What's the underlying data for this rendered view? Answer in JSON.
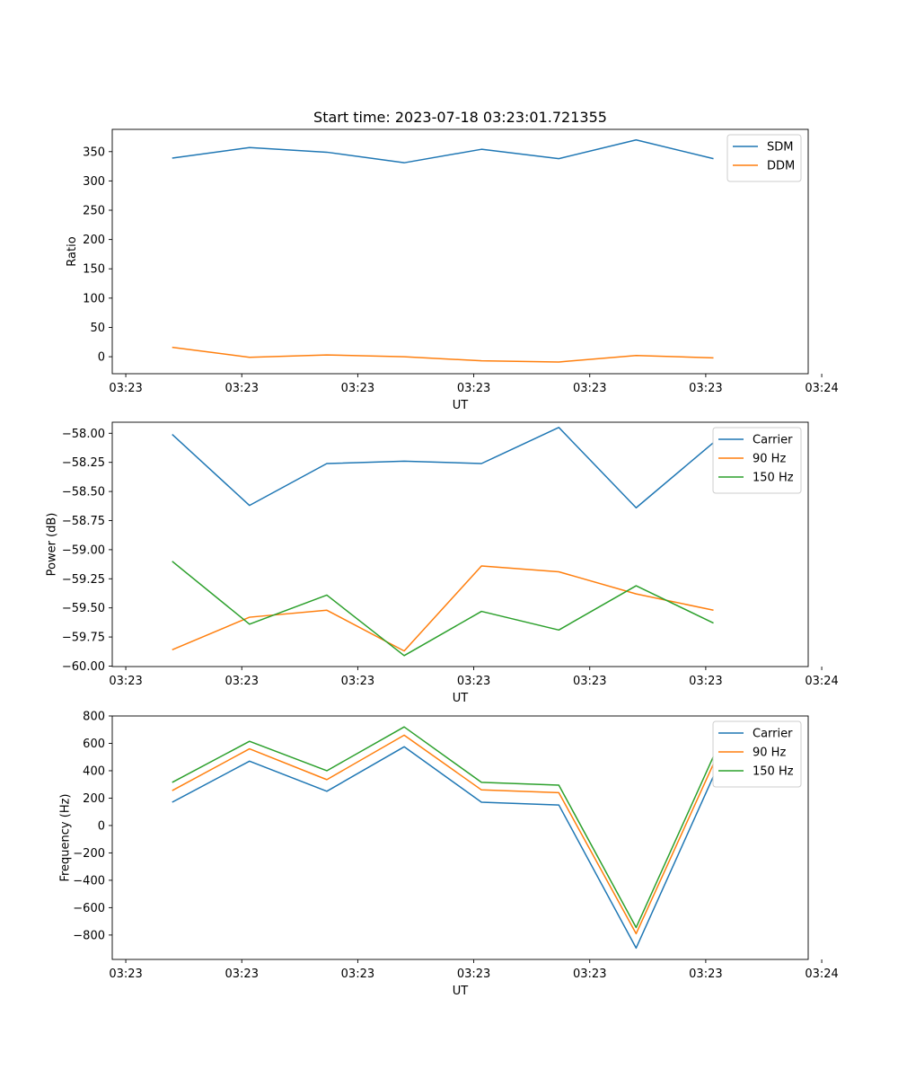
{
  "title": "Start time: 2023-07-18 03:23:01.721355",
  "colors": {
    "blue": "#1f77b4",
    "orange": "#ff7f0e",
    "green": "#2ca02c"
  },
  "chart_data": [
    {
      "type": "line",
      "xlabel": "UT",
      "ylabel": "Ratio",
      "x": [
        1,
        2,
        3,
        4,
        5,
        6,
        7,
        8
      ],
      "xlim": [
        0.225,
        9.225
      ],
      "xticks": [
        0.4,
        1.9,
        3.4,
        4.9,
        6.4,
        7.9,
        9.4
      ],
      "xtick_labels": [
        "03:23",
        "03:23",
        "03:23",
        "03:23",
        "03:23",
        "03:23",
        "03:24"
      ],
      "ylim": [
        -29,
        388
      ],
      "yticks": [
        0,
        50,
        100,
        150,
        200,
        250,
        300,
        350
      ],
      "ytick_labels": [
        "0",
        "50",
        "100",
        "150",
        "200",
        "250",
        "300",
        "350"
      ],
      "legend_position": "top-right",
      "series": [
        {
          "name": "SDM",
          "color": "#1f77b4",
          "values": [
            339,
            357,
            349,
            331,
            354,
            338,
            370,
            338
          ]
        },
        {
          "name": "DDM",
          "color": "#ff7f0e",
          "values": [
            16,
            -1,
            3,
            0,
            -7,
            -9,
            2,
            -2
          ]
        }
      ]
    },
    {
      "type": "line",
      "xlabel": "UT",
      "ylabel": "Power (dB)",
      "x": [
        1,
        2,
        3,
        4,
        5,
        6,
        7,
        8
      ],
      "xlim": [
        0.225,
        9.225
      ],
      "xticks": [
        0.4,
        1.9,
        3.4,
        4.9,
        6.4,
        7.9,
        9.4
      ],
      "xtick_labels": [
        "03:23",
        "03:23",
        "03:23",
        "03:23",
        "03:23",
        "03:23",
        "03:24"
      ],
      "ylim": [
        -60.004,
        -57.905
      ],
      "yticks": [
        -60.0,
        -59.75,
        -59.5,
        -59.25,
        -59.0,
        -58.75,
        -58.5,
        -58.25,
        -58.0
      ],
      "ytick_labels": [
        "−60.00",
        "−59.75",
        "−59.50",
        "−59.25",
        "−59.00",
        "−58.75",
        "−58.50",
        "−58.25",
        "−58.00"
      ],
      "legend_position": "top-right",
      "series": [
        {
          "name": "Carrier",
          "color": "#1f77b4",
          "values": [
            -58.01,
            -58.62,
            -58.26,
            -58.24,
            -58.26,
            -57.95,
            -58.64,
            -58.08
          ]
        },
        {
          "name": "90 Hz",
          "color": "#ff7f0e",
          "values": [
            -59.86,
            -59.58,
            -59.52,
            -59.87,
            -59.14,
            -59.19,
            -59.38,
            -59.52
          ]
        },
        {
          "name": "150 Hz",
          "color": "#2ca02c",
          "values": [
            -59.1,
            -59.64,
            -59.39,
            -59.91,
            -59.53,
            -59.69,
            -59.31,
            -59.63
          ]
        }
      ]
    },
    {
      "type": "line",
      "xlabel": "UT",
      "ylabel": "Frequency (Hz)",
      "x": [
        1,
        2,
        3,
        4,
        5,
        6,
        7,
        8
      ],
      "xlim": [
        0.225,
        9.225
      ],
      "xticks": [
        0.4,
        1.9,
        3.4,
        4.9,
        6.4,
        7.9,
        9.4
      ],
      "xtick_labels": [
        "03:23",
        "03:23",
        "03:23",
        "03:23",
        "03:23",
        "03:23",
        "03:24"
      ],
      "ylim": [
        -978,
        800
      ],
      "yticks": [
        -800,
        -600,
        -400,
        -200,
        0,
        200,
        400,
        600,
        800
      ],
      "ytick_labels": [
        "−800",
        "−600",
        "−400",
        "−200",
        "0",
        "200",
        "400",
        "600",
        "800"
      ],
      "legend_position": "top-right",
      "series": [
        {
          "name": "Carrier",
          "color": "#1f77b4",
          "values": [
            170,
            470,
            250,
            575,
            170,
            150,
            -895,
            360
          ]
        },
        {
          "name": "90 Hz",
          "color": "#ff7f0e",
          "values": [
            255,
            560,
            335,
            660,
            260,
            240,
            -790,
            450
          ]
        },
        {
          "name": "150 Hz",
          "color": "#2ca02c",
          "values": [
            315,
            615,
            400,
            720,
            315,
            295,
            -745,
            505
          ]
        }
      ]
    }
  ]
}
